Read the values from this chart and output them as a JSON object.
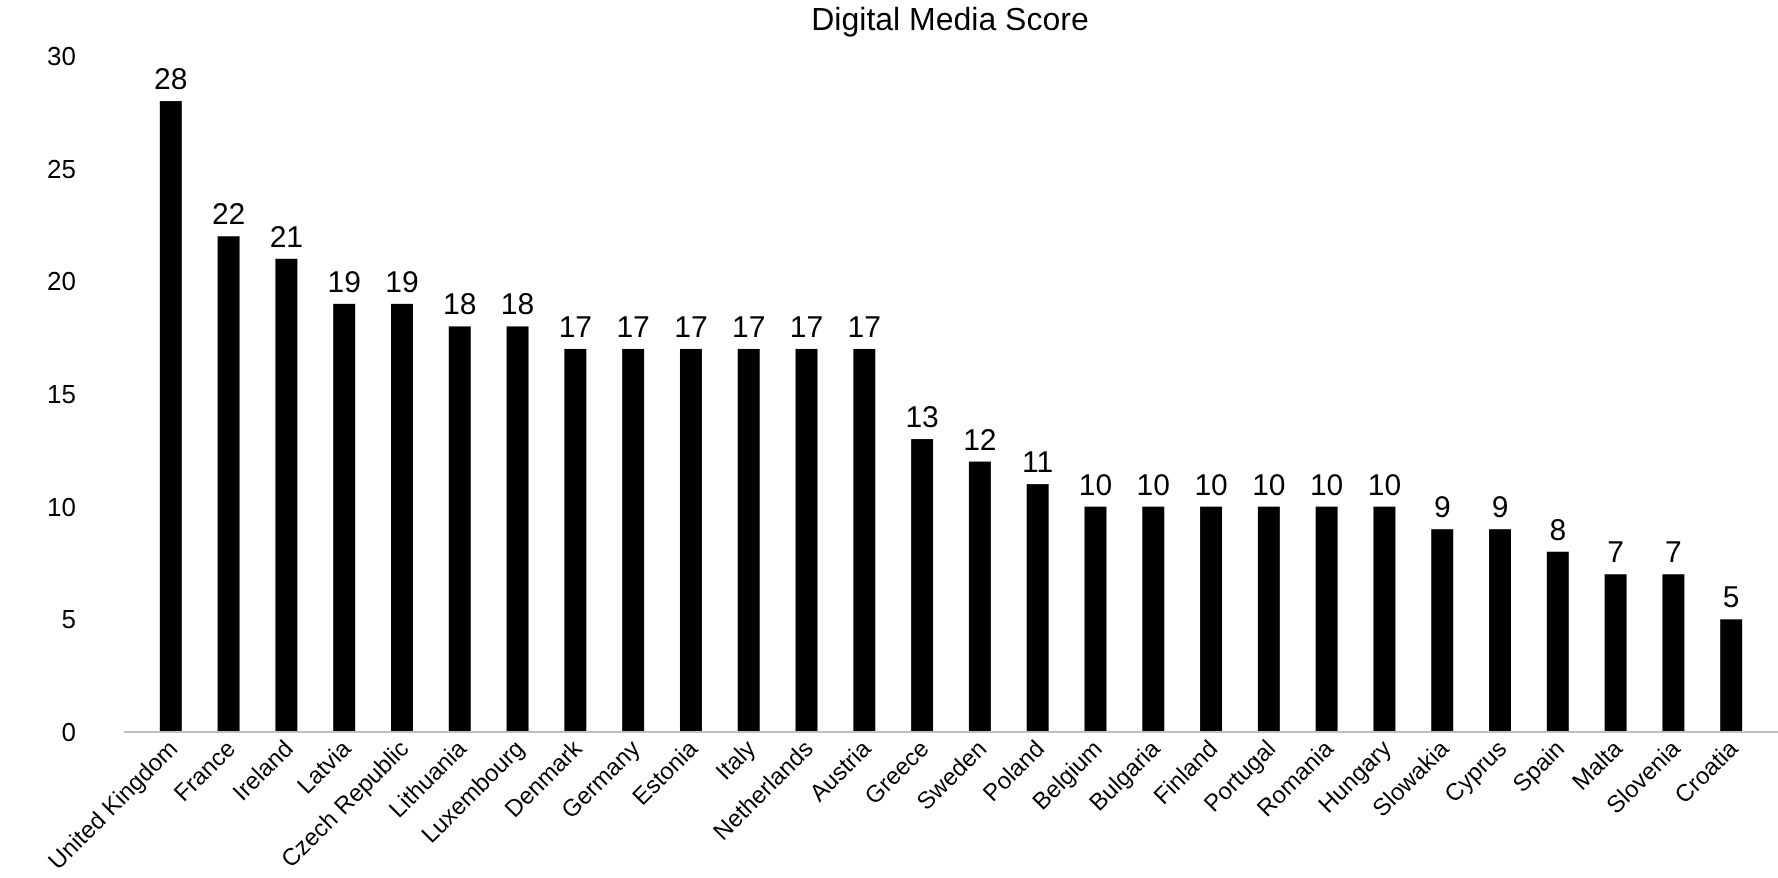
{
  "chart_data": {
    "type": "bar",
    "title": "Digital Media Score",
    "categories": [
      "United Kingdom",
      "France",
      "Ireland",
      "Latvia",
      "Czech Republic",
      "Lithuania",
      "Luxembourg",
      "Denmark",
      "Germany",
      "Estonia",
      "Italy",
      "Netherlands",
      "Austria",
      "Greece",
      "Sweden",
      "Poland",
      "Belgium",
      "Bulgaria",
      "Finland",
      "Portugal",
      "Romania",
      "Hungary",
      "Slowakia",
      "Cyprus",
      "Spain",
      "Malta",
      "Slovenia",
      "Croatia"
    ],
    "values": [
      28,
      22,
      21,
      19,
      19,
      18,
      18,
      17,
      17,
      17,
      17,
      17,
      17,
      13,
      12,
      11,
      10,
      10,
      10,
      10,
      10,
      10,
      9,
      9,
      8,
      7,
      7,
      5
    ],
    "color": "#000000",
    "ylim": [
      0,
      30
    ],
    "yticks": [
      0,
      5,
      10,
      15,
      20,
      25,
      30
    ],
    "grid": false,
    "data_labels": true
  }
}
